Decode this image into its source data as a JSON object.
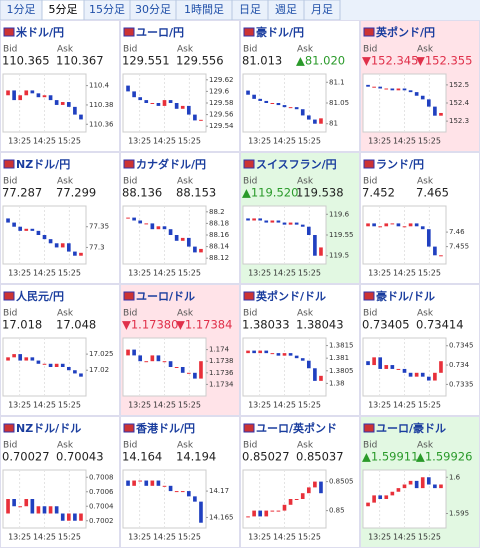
{
  "tabs": [
    "1分足",
    "5分足",
    "15分足",
    "30分足",
    "1時間足",
    "日足",
    "週足",
    "月足"
  ],
  "selected_tab": 1,
  "bid_label": "Bid",
  "ask_label": "Ask",
  "time_labels": [
    "13:25",
    "14:25",
    "15:25"
  ],
  "panels": [
    {
      "title": "米ドル/円",
      "bid": "110.365",
      "ask": "110.367",
      "highlight": "none",
      "ylim": [
        110.352,
        110.412
      ],
      "yticks": [
        110.4,
        110.38,
        110.36
      ],
      "values": [
        110.39,
        110.395,
        110.385,
        110.39,
        110.395,
        110.392,
        110.388,
        110.39,
        110.385,
        110.38,
        110.383,
        110.378,
        110.37,
        110.365
      ]
    },
    {
      "title": "ユーロ/円",
      "bid": "129.551",
      "ask": "129.556",
      "highlight": "none",
      "ylim": [
        129.53,
        129.63
      ],
      "yticks": [
        129.62,
        129.6,
        129.58,
        129.56,
        129.54
      ],
      "values": [
        129.61,
        129.6,
        129.59,
        129.585,
        129.58,
        129.58,
        129.575,
        129.585,
        129.58,
        129.57,
        129.575,
        129.56,
        129.55,
        129.551
      ]
    },
    {
      "title": "豪ドル/円",
      "bid": "81.013",
      "ask": "▲81.020",
      "highlight": "none",
      "ylim": [
        80.98,
        81.12
      ],
      "yticks": [
        81.1,
        81.05,
        81
      ],
      "values": [
        81.08,
        81.07,
        81.06,
        81.055,
        81.05,
        81.05,
        81.045,
        81.04,
        81.04,
        81.035,
        81.02,
        81.01,
        81.0,
        81.013
      ]
    },
    {
      "title": "英ポンド/円",
      "bid": "▼152.345",
      "ask": "▼152.355",
      "highlight": "down",
      "ylim": [
        152.24,
        152.56
      ],
      "yticks": [
        152.5,
        152.4,
        152.3
      ],
      "values": [
        152.5,
        152.49,
        152.49,
        152.48,
        152.48,
        152.47,
        152.48,
        152.47,
        152.46,
        152.44,
        152.42,
        152.38,
        152.33,
        152.345
      ]
    },
    {
      "title": "NZドル/円",
      "bid": "77.287",
      "ask": "77.299",
      "highlight": "none",
      "ylim": [
        77.26,
        77.4
      ],
      "yticks": [
        77.35,
        77.3
      ],
      "values": [
        77.37,
        77.36,
        77.35,
        77.34,
        77.345,
        77.34,
        77.33,
        77.32,
        77.31,
        77.3,
        77.31,
        77.29,
        77.28,
        77.287
      ]
    },
    {
      "title": "カナダドル/円",
      "bid": "88.136",
      "ask": "88.153",
      "highlight": "none",
      "ylim": [
        88.11,
        88.21
      ],
      "yticks": [
        88.2,
        88.18,
        88.16,
        88.14,
        88.12
      ],
      "values": [
        88.19,
        88.19,
        88.185,
        88.18,
        88.18,
        88.17,
        88.175,
        88.17,
        88.16,
        88.15,
        88.155,
        88.14,
        88.13,
        88.136
      ]
    },
    {
      "title": "スイスフラン/円",
      "bid": "▲119.520",
      "ask": "119.538",
      "highlight": "up",
      "ylim": [
        119.48,
        119.62
      ],
      "yticks": [
        119.6,
        119.55,
        119.5
      ],
      "values": [
        119.59,
        119.585,
        119.59,
        119.585,
        119.58,
        119.585,
        119.58,
        119.575,
        119.58,
        119.575,
        119.57,
        119.55,
        119.5,
        119.52
      ]
    },
    {
      "title": "ランド/円",
      "bid": "7.452",
      "ask": "7.465",
      "highlight": "none",
      "ylim": [
        7.449,
        7.469
      ],
      "yticks": [
        7.46,
        7.455
      ],
      "values": [
        7.462,
        7.463,
        7.462,
        7.462,
        7.463,
        7.463,
        7.462,
        7.462,
        7.463,
        7.462,
        7.461,
        7.455,
        7.452,
        7.452
      ]
    },
    {
      "title": "人民元/円",
      "bid": "17.018",
      "ask": "17.048",
      "highlight": "none",
      "ylim": [
        17.012,
        17.03
      ],
      "yticks": [
        17.025,
        17.02
      ],
      "values": [
        17.023,
        17.024,
        17.025,
        17.023,
        17.024,
        17.023,
        17.022,
        17.022,
        17.021,
        17.022,
        17.021,
        17.02,
        17.019,
        17.018
      ]
    },
    {
      "title": "ユーロ/ドル",
      "bid": "▼1.17380",
      "ask": "▼1.17384",
      "highlight": "down",
      "ylim": [
        1.1732,
        1.1742
      ],
      "yticks": [
        1.174,
        1.1738,
        1.1736,
        1.1734
      ],
      "values": [
        1.1739,
        1.174,
        1.1739,
        1.1738,
        1.1738,
        1.1739,
        1.1738,
        1.1738,
        1.1737,
        1.1737,
        1.1736,
        1.1736,
        1.1735,
        1.1738
      ]
    },
    {
      "title": "英ポンド/ドル",
      "bid": "1.38033",
      "ask": "1.38043",
      "highlight": "none",
      "ylim": [
        1.3795,
        1.3818
      ],
      "yticks": [
        1.3815,
        1.381,
        1.3805,
        1.38
      ],
      "values": [
        1.3812,
        1.3813,
        1.3812,
        1.3813,
        1.3812,
        1.3812,
        1.3811,
        1.3812,
        1.3811,
        1.381,
        1.3809,
        1.3806,
        1.3801,
        1.3803
      ]
    },
    {
      "title": "豪ドル/ドル",
      "bid": "0.73405",
      "ask": "0.73414",
      "highlight": "none",
      "ylim": [
        0.7332,
        0.7347
      ],
      "yticks": [
        0.7345,
        0.734,
        0.7335
      ],
      "values": [
        0.7341,
        0.734,
        0.7342,
        0.7339,
        0.734,
        0.7339,
        0.7339,
        0.7338,
        0.7337,
        0.7338,
        0.7337,
        0.7336,
        0.7338,
        0.7341
      ]
    },
    {
      "title": "NZドル/ドル",
      "bid": "0.70027",
      "ask": "0.70043",
      "highlight": "none",
      "ylim": [
        0.7001,
        0.7009
      ],
      "yticks": [
        0.7008,
        0.7006,
        0.7004,
        0.7002
      ],
      "values": [
        0.7003,
        0.7005,
        0.7004,
        0.7004,
        0.7005,
        0.7003,
        0.7004,
        0.7003,
        0.7004,
        0.7003,
        0.7002,
        0.7003,
        0.7002,
        0.7003
      ]
    },
    {
      "title": "香港ドル/円",
      "bid": "14.164",
      "ask": "14.194",
      "highlight": "none",
      "ylim": [
        14.163,
        14.174
      ],
      "yticks": [
        14.17,
        14.165
      ],
      "values": [
        14.172,
        14.171,
        14.172,
        14.172,
        14.171,
        14.172,
        14.171,
        14.171,
        14.17,
        14.17,
        14.17,
        14.169,
        14.168,
        14.164
      ]
    },
    {
      "title": "ユーロ/英ポンド",
      "bid": "0.85027",
      "ask": "0.85037",
      "highlight": "none",
      "ylim": [
        0.8497,
        0.8507
      ],
      "yticks": [
        0.8505,
        0.85
      ],
      "values": [
        0.8499,
        0.8499,
        0.85,
        0.8499,
        0.85,
        0.85,
        0.85,
        0.8501,
        0.8502,
        0.8502,
        0.8503,
        0.8504,
        0.8505,
        0.8503
      ]
    },
    {
      "title": "ユーロ/豪ドル",
      "bid": "▲1.59911",
      "ask": "▲1.59926",
      "highlight": "up",
      "ylim": [
        1.593,
        1.601
      ],
      "yticks": [
        1.6,
        1.595
      ],
      "values": [
        1.596,
        1.5965,
        1.5975,
        1.597,
        1.5975,
        1.598,
        1.5985,
        1.599,
        1.5995,
        1.5985,
        1.6,
        1.599,
        1.5985,
        1.599
      ]
    }
  ]
}
